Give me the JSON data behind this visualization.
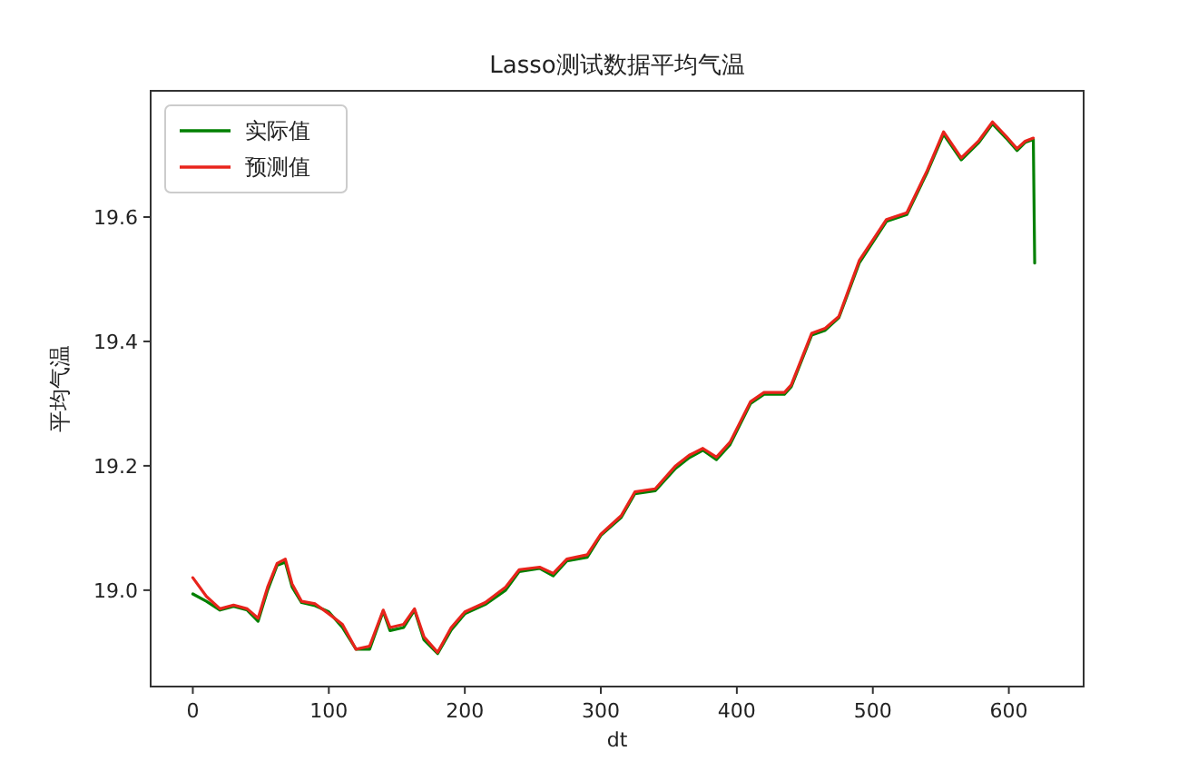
{
  "chart_data": {
    "type": "line",
    "title": "Lasso测试数据平均气温",
    "xlabel": "dt",
    "ylabel": "平均气温",
    "x": [
      0,
      10,
      20,
      30,
      40,
      48,
      55,
      62,
      68,
      73,
      80,
      90,
      100,
      110,
      120,
      130,
      140,
      145,
      155,
      163,
      170,
      180,
      190,
      200,
      215,
      230,
      240,
      255,
      265,
      275,
      290,
      300,
      315,
      325,
      340,
      355,
      365,
      375,
      385,
      395,
      410,
      420,
      435,
      440,
      455,
      465,
      475,
      490,
      510,
      525,
      540,
      552,
      565,
      578,
      588,
      598,
      606,
      612,
      618,
      619
    ],
    "series": [
      {
        "name": "实际值",
        "color": "#008000",
        "values": [
          18.994,
          18.982,
          18.968,
          18.974,
          18.968,
          18.95,
          19.0,
          19.04,
          19.045,
          19.005,
          18.98,
          18.975,
          18.965,
          18.94,
          18.905,
          18.905,
          18.966,
          18.935,
          18.94,
          18.968,
          18.92,
          18.898,
          18.936,
          18.962,
          18.977,
          19.0,
          19.03,
          19.035,
          19.023,
          19.047,
          19.053,
          19.088,
          19.117,
          19.155,
          19.16,
          19.196,
          19.213,
          19.225,
          19.21,
          19.234,
          19.3,
          19.315,
          19.315,
          19.327,
          19.41,
          19.418,
          19.438,
          19.526,
          19.593,
          19.604,
          19.672,
          19.733,
          19.692,
          19.72,
          19.75,
          19.727,
          19.707,
          19.72,
          19.725,
          19.526
        ]
      },
      {
        "name": "预测值",
        "color": "#e8241c",
        "values": [
          19.02,
          18.99,
          18.97,
          18.976,
          18.97,
          18.955,
          19.005,
          19.043,
          19.05,
          19.01,
          18.982,
          18.978,
          18.962,
          18.945,
          18.905,
          18.91,
          18.968,
          18.94,
          18.945,
          18.97,
          18.925,
          18.9,
          18.94,
          18.965,
          18.98,
          19.005,
          19.033,
          19.037,
          19.027,
          19.05,
          19.057,
          19.09,
          19.12,
          19.158,
          19.163,
          19.2,
          19.217,
          19.228,
          19.214,
          19.238,
          19.303,
          19.318,
          19.318,
          19.33,
          19.413,
          19.421,
          19.44,
          19.53,
          19.596,
          19.607,
          19.675,
          19.737,
          19.695,
          19.723,
          19.753,
          19.73,
          19.71,
          19.722,
          19.727,
          null
        ]
      }
    ],
    "xlim": [
      -31,
      655
    ],
    "ylim": [
      18.845,
      19.803
    ],
    "xticks": [
      0,
      100,
      200,
      300,
      400,
      500,
      600
    ],
    "yticks": [
      {
        "value": 19,
        "label": "19.0"
      },
      19.2,
      19.4,
      19.6
    ],
    "legend": "top left"
  }
}
